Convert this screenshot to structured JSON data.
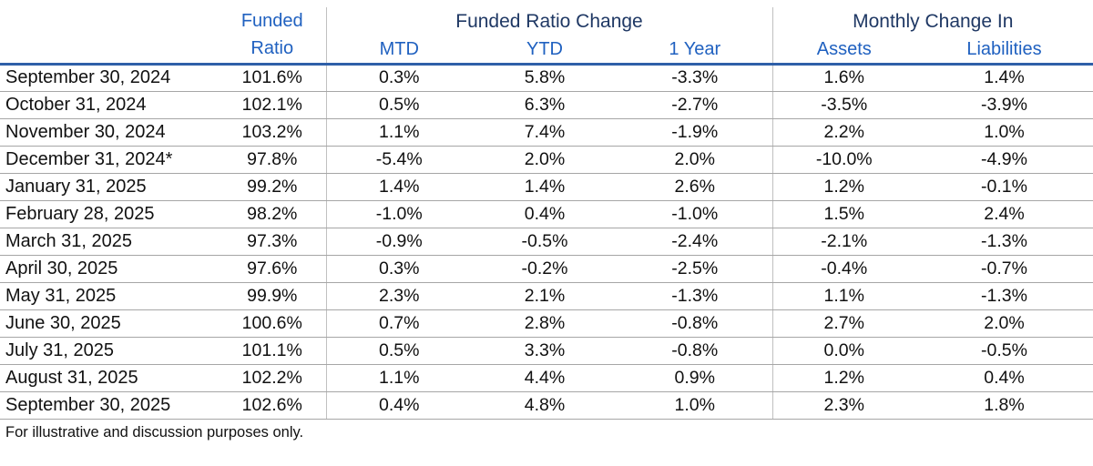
{
  "chart_data": {
    "type": "table",
    "column_headers": {
      "funded_ratio_line1": "Funded",
      "funded_ratio_line2": "Ratio",
      "group_change": "Funded Ratio Change",
      "group_monthly": "Monthly Change In",
      "mtd": "MTD",
      "ytd": "YTD",
      "one_year": "1 Year",
      "assets": "Assets",
      "liabilities": "Liabilities"
    },
    "rows": [
      {
        "date": "September 30, 2024",
        "funded_ratio": "101.6%",
        "mtd": "0.3%",
        "ytd": "5.8%",
        "one_year": "-3.3%",
        "assets": "1.6%",
        "liabilities": "1.4%"
      },
      {
        "date": "October 31, 2024",
        "funded_ratio": "102.1%",
        "mtd": "0.5%",
        "ytd": "6.3%",
        "one_year": "-2.7%",
        "assets": "-3.5%",
        "liabilities": "-3.9%"
      },
      {
        "date": "November 30, 2024",
        "funded_ratio": "103.2%",
        "mtd": "1.1%",
        "ytd": "7.4%",
        "one_year": "-1.9%",
        "assets": "2.2%",
        "liabilities": "1.0%"
      },
      {
        "date": "December 31, 2024*",
        "funded_ratio": "97.8%",
        "mtd": "-5.4%",
        "ytd": "2.0%",
        "one_year": "2.0%",
        "assets": "-10.0%",
        "liabilities": "-4.9%"
      },
      {
        "date": "January 31, 2025",
        "funded_ratio": "99.2%",
        "mtd": "1.4%",
        "ytd": "1.4%",
        "one_year": "2.6%",
        "assets": "1.2%",
        "liabilities": "-0.1%"
      },
      {
        "date": "February 28, 2025",
        "funded_ratio": "98.2%",
        "mtd": "-1.0%",
        "ytd": "0.4%",
        "one_year": "-1.0%",
        "assets": "1.5%",
        "liabilities": "2.4%"
      },
      {
        "date": "March 31, 2025",
        "funded_ratio": "97.3%",
        "mtd": "-0.9%",
        "ytd": "-0.5%",
        "one_year": "-2.4%",
        "assets": "-2.1%",
        "liabilities": "-1.3%"
      },
      {
        "date": "April 30, 2025",
        "funded_ratio": "97.6%",
        "mtd": "0.3%",
        "ytd": "-0.2%",
        "one_year": "-2.5%",
        "assets": "-0.4%",
        "liabilities": "-0.7%"
      },
      {
        "date": "May 31, 2025",
        "funded_ratio": "99.9%",
        "mtd": "2.3%",
        "ytd": "2.1%",
        "one_year": "-1.3%",
        "assets": "1.1%",
        "liabilities": "-1.3%"
      },
      {
        "date": "June 30, 2025",
        "funded_ratio": "100.6%",
        "mtd": "0.7%",
        "ytd": "2.8%",
        "one_year": "-0.8%",
        "assets": "2.7%",
        "liabilities": "2.0%"
      },
      {
        "date": "July 31, 2025",
        "funded_ratio": "101.1%",
        "mtd": "0.5%",
        "ytd": "3.3%",
        "one_year": "-0.8%",
        "assets": "0.0%",
        "liabilities": "-0.5%"
      },
      {
        "date": "August 31, 2025",
        "funded_ratio": "102.2%",
        "mtd": "1.1%",
        "ytd": "4.4%",
        "one_year": "0.9%",
        "assets": "1.2%",
        "liabilities": "0.4%"
      },
      {
        "date": "September 30, 2025",
        "funded_ratio": "102.6%",
        "mtd": "0.4%",
        "ytd": "4.8%",
        "one_year": "1.0%",
        "assets": "2.3%",
        "liabilities": "1.8%"
      }
    ],
    "footnote": "For illustrative and discussion purposes only."
  },
  "colors": {
    "header_navy": "#1F3864",
    "header_blue": "#2061C0",
    "rule_blue": "#2E5FA8",
    "rule_gray": "#A6A6A6",
    "divider_gray": "#C0C0C0",
    "text_color": "#111111",
    "bg": "#FFFFFF"
  }
}
